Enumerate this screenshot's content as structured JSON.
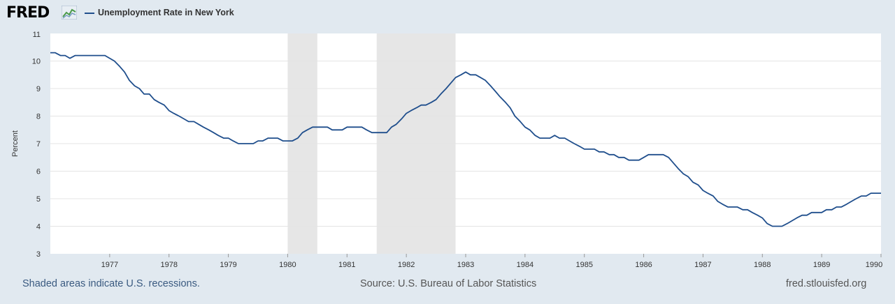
{
  "header": {
    "logo_text": "FRED",
    "series_title": "Unemployment Rate in New York",
    "series_color": "#1f4e8c"
  },
  "footer": {
    "recession_note": "Shaded areas indicate U.S. recessions.",
    "source": "Source: U.S. Bureau of Labor Statistics",
    "site": "fred.stlouisfed.org"
  },
  "chart_data": {
    "type": "line",
    "title": "Unemployment Rate in New York",
    "xlabel": "",
    "ylabel": "Percent",
    "ylim": [
      3,
      11
    ],
    "xlim": [
      1976.0,
      1990.0
    ],
    "yticks": [
      3,
      4,
      5,
      6,
      7,
      8,
      9,
      10,
      11
    ],
    "xticks": [
      "1977",
      "1978",
      "1979",
      "1980",
      "1981",
      "1982",
      "1983",
      "1984",
      "1985",
      "1986",
      "1987",
      "1988",
      "1989",
      "1990"
    ],
    "grid": true,
    "recessions": [
      [
        1980.0,
        1980.5
      ],
      [
        1981.5,
        1982.83
      ]
    ],
    "recession_color": "#e6e6e6",
    "series": [
      {
        "name": "Unemployment Rate in New York",
        "color": "#1f4e8c",
        "x": [
          1976.0,
          1976.08,
          1976.17,
          1976.25,
          1976.33,
          1976.42,
          1976.5,
          1976.58,
          1976.67,
          1976.75,
          1976.83,
          1976.92,
          1977.0,
          1977.08,
          1977.17,
          1977.25,
          1977.33,
          1977.42,
          1977.5,
          1977.58,
          1977.67,
          1977.75,
          1977.83,
          1977.92,
          1978.0,
          1978.08,
          1978.17,
          1978.25,
          1978.33,
          1978.42,
          1978.5,
          1978.58,
          1978.67,
          1978.75,
          1978.83,
          1978.92,
          1979.0,
          1979.08,
          1979.17,
          1979.25,
          1979.33,
          1979.42,
          1979.5,
          1979.58,
          1979.67,
          1979.75,
          1979.83,
          1979.92,
          1980.0,
          1980.08,
          1980.17,
          1980.25,
          1980.33,
          1980.42,
          1980.5,
          1980.58,
          1980.67,
          1980.75,
          1980.83,
          1980.92,
          1981.0,
          1981.08,
          1981.17,
          1981.25,
          1981.33,
          1981.42,
          1981.5,
          1981.58,
          1981.67,
          1981.75,
          1981.83,
          1981.92,
          1982.0,
          1982.08,
          1982.17,
          1982.25,
          1982.33,
          1982.42,
          1982.5,
          1982.58,
          1982.67,
          1982.75,
          1982.83,
          1982.92,
          1983.0,
          1983.08,
          1983.17,
          1983.25,
          1983.33,
          1983.42,
          1983.5,
          1983.58,
          1983.67,
          1983.75,
          1983.83,
          1983.92,
          1984.0,
          1984.08,
          1984.17,
          1984.25,
          1984.33,
          1984.42,
          1984.5,
          1984.58,
          1984.67,
          1984.75,
          1984.83,
          1984.92,
          1985.0,
          1985.08,
          1985.17,
          1985.25,
          1985.33,
          1985.42,
          1985.5,
          1985.58,
          1985.67,
          1985.75,
          1985.83,
          1985.92,
          1986.0,
          1986.08,
          1986.17,
          1986.25,
          1986.33,
          1986.42,
          1986.5,
          1986.58,
          1986.67,
          1986.75,
          1986.83,
          1986.92,
          1987.0,
          1987.08,
          1987.17,
          1987.25,
          1987.33,
          1987.42,
          1987.5,
          1987.58,
          1987.67,
          1987.75,
          1987.83,
          1987.92,
          1988.0,
          1988.08,
          1988.17,
          1988.25,
          1988.33,
          1988.42,
          1988.5,
          1988.58,
          1988.67,
          1988.75,
          1988.83,
          1988.92,
          1989.0,
          1989.08,
          1989.17,
          1989.25,
          1989.33,
          1989.42,
          1989.5,
          1989.58,
          1989.67,
          1989.75,
          1989.83,
          1989.92,
          1990.0
        ],
        "values": [
          10.3,
          10.3,
          10.2,
          10.2,
          10.1,
          10.2,
          10.2,
          10.2,
          10.2,
          10.2,
          10.2,
          10.2,
          10.1,
          10.0,
          9.8,
          9.6,
          9.3,
          9.1,
          9.0,
          8.8,
          8.8,
          8.6,
          8.5,
          8.4,
          8.2,
          8.1,
          8.0,
          7.9,
          7.8,
          7.8,
          7.7,
          7.6,
          7.5,
          7.4,
          7.3,
          7.2,
          7.2,
          7.1,
          7.0,
          7.0,
          7.0,
          7.0,
          7.1,
          7.1,
          7.2,
          7.2,
          7.2,
          7.1,
          7.1,
          7.1,
          7.2,
          7.4,
          7.5,
          7.6,
          7.6,
          7.6,
          7.6,
          7.5,
          7.5,
          7.5,
          7.6,
          7.6,
          7.6,
          7.6,
          7.5,
          7.4,
          7.4,
          7.4,
          7.4,
          7.6,
          7.7,
          7.9,
          8.1,
          8.2,
          8.3,
          8.4,
          8.4,
          8.5,
          8.6,
          8.8,
          9.0,
          9.2,
          9.4,
          9.5,
          9.6,
          9.5,
          9.5,
          9.4,
          9.3,
          9.1,
          8.9,
          8.7,
          8.5,
          8.3,
          8.0,
          7.8,
          7.6,
          7.5,
          7.3,
          7.2,
          7.2,
          7.2,
          7.3,
          7.2,
          7.2,
          7.1,
          7.0,
          6.9,
          6.8,
          6.8,
          6.8,
          6.7,
          6.7,
          6.6,
          6.6,
          6.5,
          6.5,
          6.4,
          6.4,
          6.4,
          6.5,
          6.6,
          6.6,
          6.6,
          6.6,
          6.5,
          6.3,
          6.1,
          5.9,
          5.8,
          5.6,
          5.5,
          5.3,
          5.2,
          5.1,
          4.9,
          4.8,
          4.7,
          4.7,
          4.7,
          4.6,
          4.6,
          4.5,
          4.4,
          4.3,
          4.1,
          4.0,
          4.0,
          4.0,
          4.1,
          4.2,
          4.3,
          4.4,
          4.4,
          4.5,
          4.5,
          4.5,
          4.6,
          4.6,
          4.7,
          4.7,
          4.8,
          4.9,
          5.0,
          5.1,
          5.1,
          5.2,
          5.2,
          5.2
        ]
      }
    ]
  }
}
